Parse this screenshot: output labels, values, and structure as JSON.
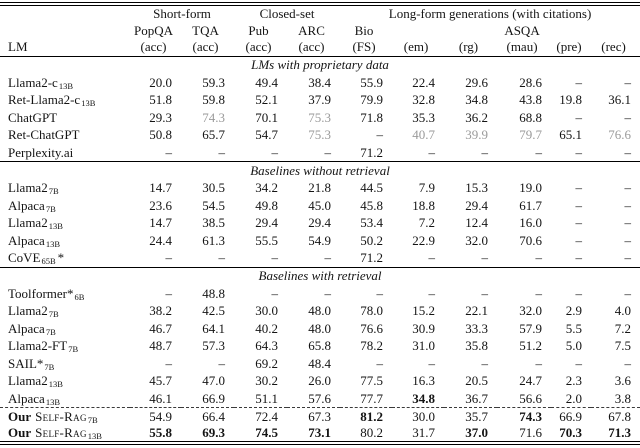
{
  "colors": {
    "text": "#141414",
    "gray_value": "#9a9a9a",
    "rule": "#000000",
    "background": "#ffffff"
  },
  "table": {
    "corner_label": "LM",
    "groups": [
      {
        "label": "Short-form",
        "span": 2
      },
      {
        "label": "Closed-set",
        "span": 2
      },
      {
        "label": "Long-form generations (with citations)",
        "span": 6
      }
    ],
    "columns": [
      {
        "task": "PopQA",
        "metric": "(acc)"
      },
      {
        "task": "TQA",
        "metric": "(acc)"
      },
      {
        "task": "Pub",
        "metric": "(acc)"
      },
      {
        "task": "ARC",
        "metric": "(acc)"
      },
      {
        "task": "Bio",
        "metric": "(FS)"
      },
      {
        "task": "",
        "metric": "(em)"
      },
      {
        "task": "",
        "metric": "(rg)"
      },
      {
        "task": "ASQA",
        "metric": "(mau)"
      },
      {
        "task": "",
        "metric": "(pre)"
      },
      {
        "task": "",
        "metric": "(rec)"
      }
    ],
    "sections": [
      {
        "title": "LMs with proprietary data",
        "rows": [
          {
            "model": {
              "name": "Llama2-c",
              "sub": "13B"
            },
            "values": [
              "20.0",
              "59.3",
              "49.4",
              "38.4",
              "55.9",
              "22.4",
              "29.6",
              "28.6",
              "–",
              "–"
            ]
          },
          {
            "model": {
              "name": "Ret-Llama2-c",
              "sub": "13B"
            },
            "values": [
              "51.8",
              "59.8",
              "52.1",
              "37.9",
              "79.9",
              "32.8",
              "34.8",
              "43.8",
              "19.8",
              "36.1"
            ]
          },
          {
            "model": {
              "name": "ChatGPT"
            },
            "values": [
              "29.3",
              {
                "v": "74.3",
                "s": "gray"
              },
              "70.1",
              {
                "v": "75.3",
                "s": "gray"
              },
              "71.8",
              "35.3",
              "36.2",
              "68.8",
              "–",
              "–"
            ]
          },
          {
            "model": {
              "name": "Ret-ChatGPT"
            },
            "values": [
              "50.8",
              "65.7",
              "54.7",
              {
                "v": "75.3",
                "s": "gray"
              },
              "–",
              {
                "v": "40.7",
                "s": "gray"
              },
              {
                "v": "39.9",
                "s": "gray"
              },
              {
                "v": "79.7",
                "s": "gray"
              },
              "65.1",
              {
                "v": "76.6",
                "s": "gray"
              }
            ]
          },
          {
            "model": {
              "name": "Perplexity.ai"
            },
            "values": [
              "–",
              "–",
              "–",
              "–",
              "71.2",
              "–",
              "–",
              "–",
              "–",
              "–"
            ]
          }
        ]
      },
      {
        "title": "Baselines without retrieval",
        "rows": [
          {
            "model": {
              "name": "Llama2",
              "sub": "7B"
            },
            "values": [
              "14.7",
              "30.5",
              "34.2",
              "21.8",
              "44.5",
              "7.9",
              "15.3",
              "19.0",
              "–",
              "–"
            ]
          },
          {
            "model": {
              "name": "Alpaca",
              "sub": "7B"
            },
            "values": [
              "23.6",
              "54.5",
              "49.8",
              "45.0",
              "45.8",
              "18.8",
              "29.4",
              "61.7",
              "–",
              "–"
            ]
          },
          {
            "model": {
              "name": "Llama2",
              "sub": "13B"
            },
            "values": [
              "14.7",
              "38.5",
              "29.4",
              "29.4",
              "53.4",
              "7.2",
              "12.4",
              "16.0",
              "–",
              "–"
            ]
          },
          {
            "model": {
              "name": "Alpaca",
              "sub": "13B"
            },
            "values": [
              "24.4",
              "61.3",
              "55.5",
              "54.9",
              "50.2",
              "22.9",
              "32.0",
              "70.6",
              "–",
              "–"
            ]
          },
          {
            "model": {
              "name": "CoVE",
              "sub": "65B",
              "post": "*"
            },
            "values": [
              "–",
              "–",
              "–",
              "–",
              "71.2",
              "–",
              "–",
              "–",
              "–",
              "–"
            ]
          }
        ]
      },
      {
        "title": "Baselines with retrieval",
        "rows": [
          {
            "model": {
              "name": "Toolformer*",
              "sub": "6B"
            },
            "values": [
              "–",
              "48.8",
              "–",
              "–",
              "–",
              "–",
              "–",
              "–",
              "–",
              "–"
            ]
          },
          {
            "model": {
              "name": "Llama2",
              "sub": "7B"
            },
            "values": [
              "38.2",
              "42.5",
              "30.0",
              "48.0",
              "78.0",
              "15.2",
              "22.1",
              "32.0",
              "2.9",
              "4.0"
            ]
          },
          {
            "model": {
              "name": "Alpaca",
              "sub": "7B"
            },
            "values": [
              "46.7",
              "64.1",
              "40.2",
              "48.0",
              "76.6",
              "30.9",
              "33.3",
              "57.9",
              "5.5",
              "7.2"
            ]
          },
          {
            "model": {
              "name": "Llama2-FT",
              "sub": "7B"
            },
            "values": [
              "48.7",
              "57.3",
              "64.3",
              "65.8",
              "78.2",
              "31.0",
              "35.8",
              "51.2",
              "5.0",
              "7.5"
            ]
          },
          {
            "model": {
              "name": "SAIL*",
              "sub": "7B"
            },
            "values": [
              "–",
              "–",
              "69.2",
              "48.4",
              "–",
              "–",
              "–",
              "–",
              "–",
              "–"
            ]
          },
          {
            "model": {
              "name": "Llama2",
              "sub": "13B"
            },
            "values": [
              "45.7",
              "47.0",
              "30.2",
              "26.0",
              "77.5",
              "16.3",
              "20.5",
              "24.7",
              "2.3",
              "3.6"
            ]
          },
          {
            "model": {
              "name": "Alpaca",
              "sub": "13B"
            },
            "values": [
              "46.1",
              "66.9",
              "51.1",
              "57.6",
              "77.7",
              {
                "v": "34.8",
                "s": "bold"
              },
              "36.7",
              "56.6",
              "2.0",
              "3.8"
            ]
          },
          {
            "model": {
              "pre": "Our",
              "name": "Self-Rag",
              "smallcaps": true,
              "sub": "7B"
            },
            "dashed_top": true,
            "values": [
              "54.9",
              "66.4",
              "72.4",
              "67.3",
              {
                "v": "81.2",
                "s": "bold"
              },
              "30.0",
              "35.7",
              {
                "v": "74.3",
                "s": "bold"
              },
              "66.9",
              "67.8"
            ]
          },
          {
            "model": {
              "pre": "Our",
              "name": "Self-Rag",
              "smallcaps": true,
              "sub": "13B"
            },
            "values": [
              {
                "v": "55.8",
                "s": "bold"
              },
              {
                "v": "69.3",
                "s": "bold"
              },
              {
                "v": "74.5",
                "s": "bold"
              },
              {
                "v": "73.1",
                "s": "bold"
              },
              "80.2",
              "31.7",
              {
                "v": "37.0",
                "s": "bold"
              },
              "71.6",
              {
                "v": "70.3",
                "s": "bold"
              },
              {
                "v": "71.3",
                "s": "bold"
              }
            ]
          }
        ]
      }
    ]
  }
}
